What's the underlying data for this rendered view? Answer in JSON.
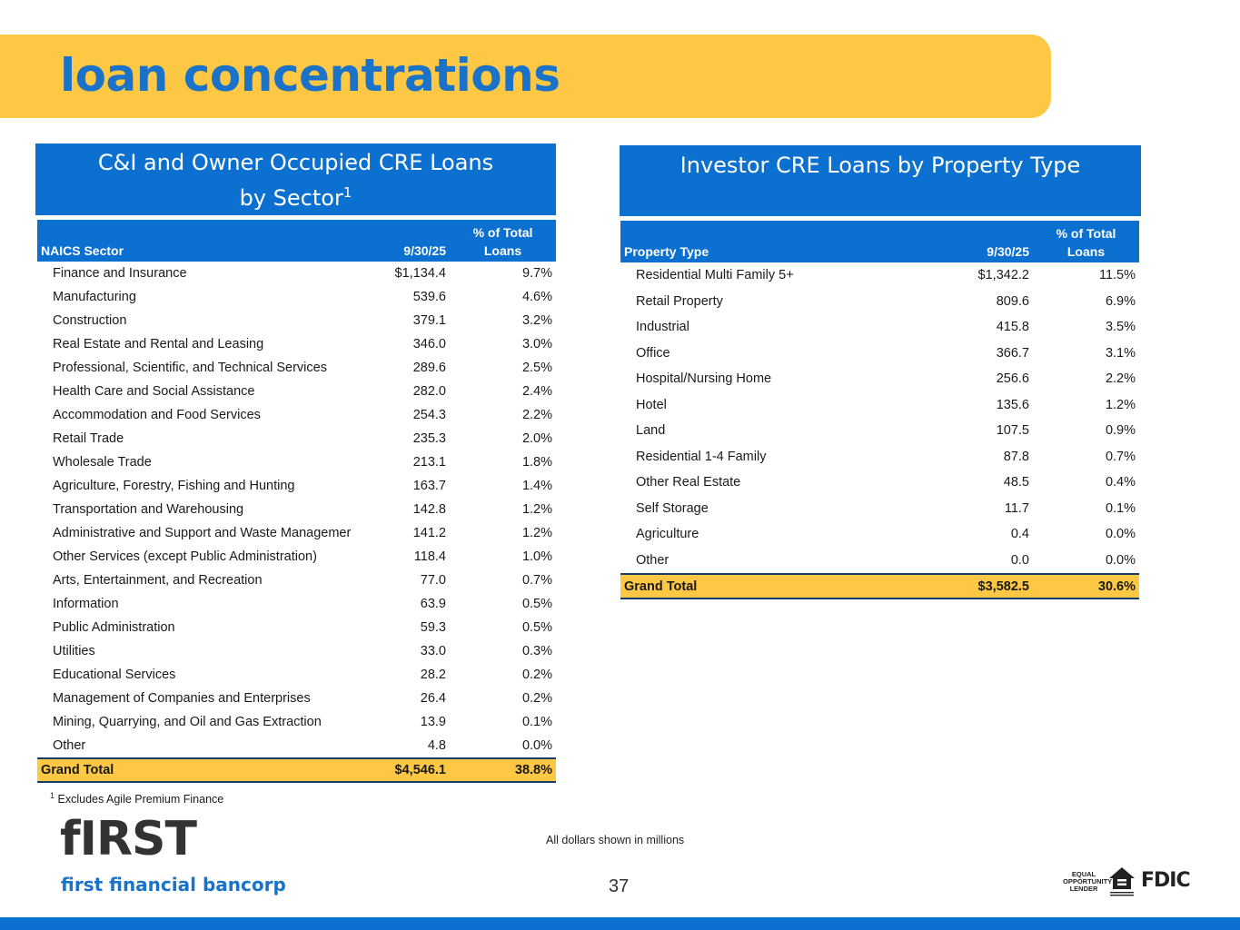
{
  "page": {
    "title": "loan concentrations"
  },
  "left": {
    "heading_line1": "C&I and Owner Occupied CRE Loans",
    "heading_line2": "by Sector",
    "heading_sup": "1",
    "col1": "NAICS Sector",
    "col2": "9/30/25",
    "col3_line1": "% of Total",
    "col3_line2": "Loans",
    "rows": [
      [
        "Finance and Insurance",
        "$1,134.4",
        "9.7%"
      ],
      [
        "Manufacturing",
        "539.6",
        "4.6%"
      ],
      [
        "Construction",
        "379.1",
        "3.2%"
      ],
      [
        "Real Estate and Rental and Leasing",
        "346.0",
        "3.0%"
      ],
      [
        "Professional, Scientific, and Technical Services",
        "289.6",
        "2.5%"
      ],
      [
        "Health Care and Social Assistance",
        "282.0",
        "2.4%"
      ],
      [
        "Accommodation and Food Services",
        "254.3",
        "2.2%"
      ],
      [
        "Retail Trade",
        "235.3",
        "2.0%"
      ],
      [
        "Wholesale Trade",
        "213.1",
        "1.8%"
      ],
      [
        "Agriculture, Forestry, Fishing and Hunting",
        "163.7",
        "1.4%"
      ],
      [
        "Transportation and Warehousing",
        "142.8",
        "1.2%"
      ],
      [
        "Administrative and Support and Waste Managemer",
        "141.2",
        "1.2%"
      ],
      [
        "Other Services (except Public Administration)",
        "118.4",
        "1.0%"
      ],
      [
        "Arts, Entertainment, and Recreation",
        "77.0",
        "0.7%"
      ],
      [
        "Information",
        "63.9",
        "0.5%"
      ],
      [
        "Public Administration",
        "59.3",
        "0.5%"
      ],
      [
        "Utilities",
        "33.0",
        "0.3%"
      ],
      [
        "Educational Services",
        "28.2",
        "0.2%"
      ],
      [
        "Management of Companies and Enterprises",
        "26.4",
        "0.2%"
      ],
      [
        "Mining, Quarrying, and Oil and Gas Extraction",
        "13.9",
        "0.1%"
      ],
      [
        "Other",
        "4.8",
        "0.0%"
      ]
    ],
    "total": [
      "Grand Total",
      "$4,546.1",
      "38.8%"
    ]
  },
  "right": {
    "heading": "Investor CRE Loans by Property Type",
    "col1": "Property Type",
    "col2": "9/30/25",
    "col3_line1": "% of Total",
    "col3_line2": "Loans",
    "rows": [
      [
        "Residential Multi Family 5+",
        "$1,342.2",
        "11.5%"
      ],
      [
        "Retail Property",
        "809.6",
        "6.9%"
      ],
      [
        "Industrial",
        "415.8",
        "3.5%"
      ],
      [
        "Office",
        "366.7",
        "3.1%"
      ],
      [
        "Hospital/Nursing Home",
        "256.6",
        "2.2%"
      ],
      [
        "Hotel",
        "135.6",
        "1.2%"
      ],
      [
        "Land",
        "107.5",
        "0.9%"
      ],
      [
        "Residential 1-4 Family",
        "87.8",
        "0.7%"
      ],
      [
        "Other Real Estate",
        "48.5",
        "0.4%"
      ],
      [
        "Self Storage",
        "11.7",
        "0.1%"
      ],
      [
        "Agriculture",
        "0.4",
        "0.0%"
      ],
      [
        "Other",
        "0.0",
        "0.0%"
      ]
    ],
    "total": [
      "Grand Total",
      "$3,582.5",
      "30.6%"
    ]
  },
  "footer": {
    "footnote_mark": "1",
    "footnote": "Excludes Agile Premium Finance",
    "dollars_note": "All dollars shown in millions",
    "page_number": "37",
    "logo_mark": "fIRST",
    "logo_text": "first financial bancorp",
    "equal_opportunity": "EQUAL OPPORTUNITY LENDER",
    "fdic": "FDIC"
  }
}
